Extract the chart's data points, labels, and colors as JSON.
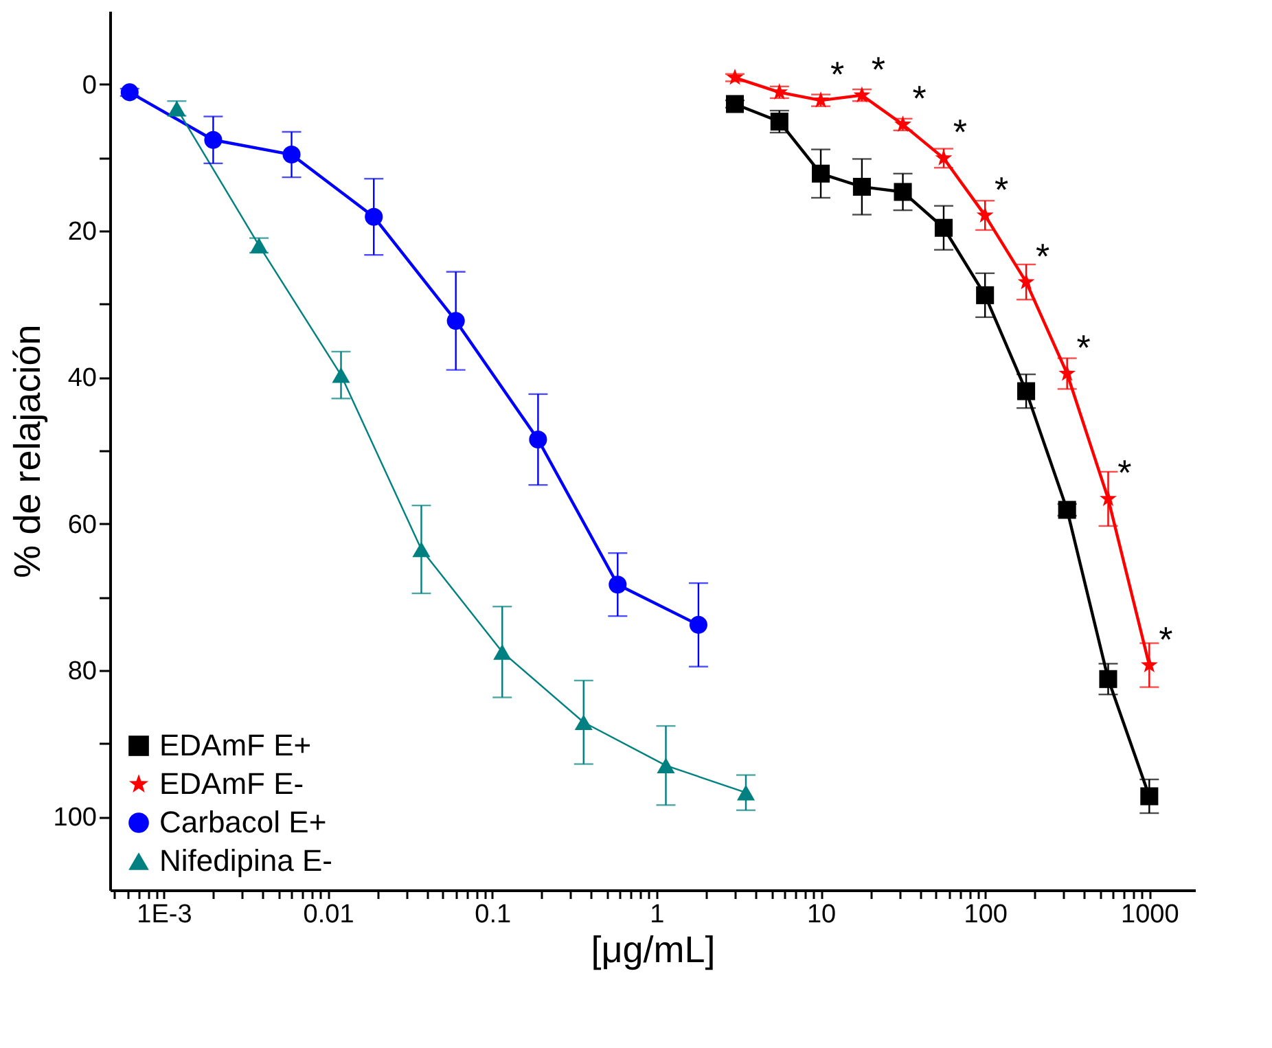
{
  "chart_data": {
    "type": "line",
    "xlabel": "[μg/mL]",
    "ylabel": "% de relajación",
    "log": "x",
    "xlim": [
      0.00047,
      1900
    ],
    "ylim": [
      110,
      -10
    ],
    "xticks": [
      {
        "value": 0.0005,
        "label": null
      },
      {
        "value": 0.0006,
        "label": null
      },
      {
        "value": 0.0007,
        "label": null
      },
      {
        "value": 0.0008,
        "label": null
      },
      {
        "value": 0.0009,
        "label": null
      },
      {
        "value": 0.001,
        "label": "1E-3"
      },
      {
        "value": 0.002,
        "label": null
      },
      {
        "value": 0.003,
        "label": null
      },
      {
        "value": 0.004,
        "label": null
      },
      {
        "value": 0.005,
        "label": null
      },
      {
        "value": 0.006,
        "label": null
      },
      {
        "value": 0.007,
        "label": null
      },
      {
        "value": 0.008,
        "label": null
      },
      {
        "value": 0.009,
        "label": null
      },
      0.01,
      {
        "value": 0.02,
        "label": null
      },
      {
        "value": 0.03,
        "label": null
      },
      {
        "value": 0.04,
        "label": null
      },
      {
        "value": 0.05,
        "label": null
      },
      {
        "value": 0.06,
        "label": null
      },
      {
        "value": 0.07,
        "label": null
      },
      {
        "value": 0.08,
        "label": null
      },
      {
        "value": 0.09,
        "label": null
      },
      0.1,
      {
        "value": 0.2,
        "label": null
      },
      {
        "value": 0.3,
        "label": null
      },
      {
        "value": 0.4,
        "label": null
      },
      {
        "value": 0.5,
        "label": null
      },
      {
        "value": 0.6,
        "label": null
      },
      {
        "value": 0.7,
        "label": null
      },
      {
        "value": 0.8,
        "label": null
      },
      {
        "value": 0.9,
        "label": null
      },
      1,
      {
        "value": 2,
        "label": null
      },
      {
        "value": 3,
        "label": null
      },
      {
        "value": 4,
        "label": null
      },
      {
        "value": 5,
        "label": null
      },
      {
        "value": 6,
        "label": null
      },
      {
        "value": 7,
        "label": null
      },
      {
        "value": 8,
        "label": null
      },
      {
        "value": 9,
        "label": null
      },
      10,
      {
        "value": 20,
        "label": null
      },
      {
        "value": 30,
        "label": null
      },
      {
        "value": 40,
        "label": null
      },
      {
        "value": 50,
        "label": null
      },
      {
        "value": 60,
        "label": null
      },
      {
        "value": 70,
        "label": null
      },
      {
        "value": 80,
        "label": null
      },
      {
        "value": 90,
        "label": null
      },
      100,
      {
        "value": 200,
        "label": null
      },
      {
        "value": 300,
        "label": null
      },
      {
        "value": 400,
        "label": null
      },
      {
        "value": 500,
        "label": null
      },
      {
        "value": 600,
        "label": null
      },
      {
        "value": 700,
        "label": null
      },
      {
        "value": 800,
        "label": null
      },
      {
        "value": 900,
        "label": null
      },
      1000
    ],
    "yticks": [
      0,
      {
        "value": 10,
        "label": null
      },
      20,
      {
        "value": 30,
        "label": null
      },
      40,
      {
        "value": 50,
        "label": null
      },
      60,
      {
        "value": 70,
        "label": null
      },
      80,
      {
        "value": 90,
        "label": null
      },
      100
    ],
    "grid": false,
    "legend": "bottom left",
    "line_style": "solid",
    "series": [
      {
        "name": "EDAmF E+",
        "color": "#000000",
        "marker": "square",
        "x": [
          3,
          5.6,
          10,
          17.8,
          31.6,
          56,
          100,
          178,
          316,
          562,
          1000
        ],
        "values": [
          2.7,
          5.1,
          12.2,
          14.0,
          14.7,
          19.6,
          28.8,
          41.9,
          58.1,
          81.2,
          97.2
        ],
        "errors": [
          0.5,
          1.5,
          3.3,
          3.8,
          2.5,
          3,
          3,
          2.3,
          0.8,
          2.1,
          2.3
        ]
      },
      {
        "name": "EDAmF E-",
        "color": "#ff0000",
        "marker": "star",
        "x": [
          3,
          5.6,
          10,
          17.8,
          31.6,
          56,
          100,
          178,
          316,
          562,
          1000
        ],
        "values": [
          -0.9,
          1.1,
          2.2,
          1.5,
          5.5,
          10.1,
          17.9,
          27,
          39.5,
          56.6,
          79.3
        ],
        "errors": [
          0.5,
          0.8,
          0.8,
          0.8,
          0.8,
          1.3,
          2,
          2.4,
          2.1,
          3.7,
          3
        ]
      },
      {
        "name": "Carbacol E+",
        "color": "#0000ff",
        "marker": "circle",
        "x": [
          0.00062,
          0.002,
          0.006,
          0.019,
          0.06,
          0.19,
          0.58,
          1.8
        ],
        "values": [
          1.1,
          7.6,
          9.6,
          18.1,
          32.3,
          48.5,
          68.3,
          73.8
        ],
        "errors": [
          0.5,
          3.2,
          3.1,
          5.2,
          6.7,
          6.2,
          4.3,
          5.7
        ]
      },
      {
        "name": "Nifedipina  E-",
        "color": "#008080",
        "marker": "triangle",
        "x": [
          0.0012,
          0.0038,
          0.012,
          0.037,
          0.115,
          0.36,
          1.14,
          3.5
        ],
        "values": [
          3.3,
          22,
          39.7,
          63.5,
          77.5,
          87.1,
          93,
          96.7
        ],
        "errors": [
          1,
          1,
          3.2,
          6,
          6.2,
          5.7,
          5.4,
          2.4
        ]
      }
    ],
    "annotations": [
      "*",
      "*",
      "*",
      "*",
      "*",
      "*",
      "*",
      "*",
      "*"
    ]
  }
}
